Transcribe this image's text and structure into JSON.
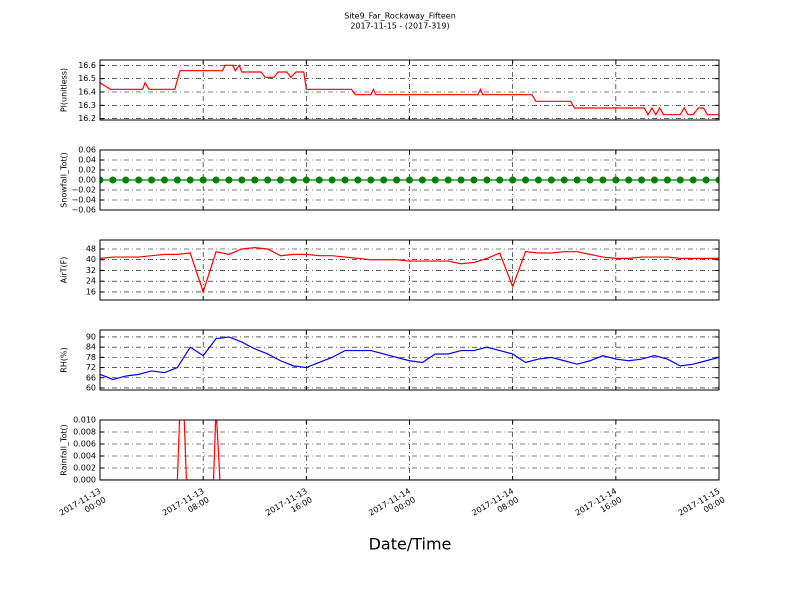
{
  "figure": {
    "title": "Site9_Far_Rockaway_Fifteen",
    "subtitle": "2017-11-15 - (2017-319)",
    "xlabel": "Date/Time",
    "xlim": [
      "2017-11-13 00:00",
      "2017-11-15 00:00"
    ],
    "xticks": [
      "2017-11-13 00:00",
      "2017-11-13 08:00",
      "2017-11-13 16:00",
      "2017-11-14 00:00",
      "2017-11-14 08:00",
      "2017-11-14 16:00",
      "2017-11-15 00:00"
    ]
  },
  "chart_data": [
    {
      "type": "line",
      "ylabel": "Pl(unitless)",
      "ylim": [
        16.19,
        16.64
      ],
      "yticks": [
        16.2,
        16.3,
        16.4,
        16.5,
        16.6
      ],
      "grid": true,
      "x": [
        "2017-11-13 00:00",
        "2017-11-13 00:48",
        "2017-11-13 03:18",
        "2017-11-13 03:30",
        "2017-11-13 03:48",
        "2017-11-13 05:48",
        "2017-11-13 06:12",
        "2017-11-13 09:30",
        "2017-11-13 09:42",
        "2017-11-13 10:18",
        "2017-11-13 10:30",
        "2017-11-13 10:48",
        "2017-11-13 11:00",
        "2017-11-13 12:30",
        "2017-11-13 12:48",
        "2017-11-13 13:30",
        "2017-11-13 13:48",
        "2017-11-13 14:30",
        "2017-11-13 14:48",
        "2017-11-13 15:12",
        "2017-11-13 15:48",
        "2017-11-13 16:00",
        "2017-11-13 19:30",
        "2017-11-13 19:48",
        "2017-11-13 21:00",
        "2017-11-13 21:12",
        "2017-11-13 21:24",
        "2017-11-14 05:18",
        "2017-11-14 05:30",
        "2017-11-14 05:42",
        "2017-11-14 09:30",
        "2017-11-14 09:48",
        "2017-11-14 12:30",
        "2017-11-14 12:48",
        "2017-11-14 18:12",
        "2017-11-14 18:30",
        "2017-11-14 18:48",
        "2017-11-14 19:06",
        "2017-11-14 19:24",
        "2017-11-14 19:42",
        "2017-11-14 21:00",
        "2017-11-14 21:18",
        "2017-11-14 21:36",
        "2017-11-14 22:00",
        "2017-11-14 22:24",
        "2017-11-14 22:48",
        "2017-11-14 23:06",
        "2017-11-15 00:00"
      ],
      "series": [
        {
          "color": "#ff0000",
          "values": [
            16.47,
            16.42,
            16.42,
            16.47,
            16.42,
            16.42,
            16.56,
            16.56,
            16.6,
            16.6,
            16.56,
            16.6,
            16.55,
            16.55,
            16.51,
            16.51,
            16.55,
            16.55,
            16.51,
            16.55,
            16.55,
            16.42,
            16.42,
            16.38,
            16.38,
            16.42,
            16.38,
            16.38,
            16.42,
            16.38,
            16.38,
            16.33,
            16.33,
            16.28,
            16.28,
            16.23,
            16.28,
            16.23,
            16.28,
            16.23,
            16.23,
            16.28,
            16.23,
            16.23,
            16.28,
            16.28,
            16.23,
            16.23
          ]
        }
      ]
    },
    {
      "type": "line",
      "ylabel": "Snowfall_Tot()",
      "ylim": [
        -0.06,
        0.06
      ],
      "yticks": [
        {
          "value": -0.06,
          "label": "−0.06"
        },
        {
          "value": -0.04,
          "label": "−0.04"
        },
        {
          "value": -0.02,
          "label": "−0.02"
        },
        {
          "value": 0,
          "label": "0.00"
        },
        0.02,
        0.04,
        0.06
      ],
      "grid": true,
      "x": [
        "2017-11-13 00:00",
        "2017-11-13 01:00",
        "2017-11-13 02:00",
        "2017-11-13 03:00",
        "2017-11-13 04:00",
        "2017-11-13 05:00",
        "2017-11-13 06:00",
        "2017-11-13 07:00",
        "2017-11-13 08:00",
        "2017-11-13 09:00",
        "2017-11-13 10:00",
        "2017-11-13 11:00",
        "2017-11-13 12:00",
        "2017-11-13 13:00",
        "2017-11-13 14:00",
        "2017-11-13 15:00",
        "2017-11-13 16:00",
        "2017-11-13 17:00",
        "2017-11-13 18:00",
        "2017-11-13 19:00",
        "2017-11-13 20:00",
        "2017-11-13 21:00",
        "2017-11-13 22:00",
        "2017-11-13 23:00",
        "2017-11-14 00:00",
        "2017-11-14 01:00",
        "2017-11-14 02:00",
        "2017-11-14 03:00",
        "2017-11-14 04:00",
        "2017-11-14 05:00",
        "2017-11-14 06:00",
        "2017-11-14 07:00",
        "2017-11-14 08:00",
        "2017-11-14 09:00",
        "2017-11-14 10:00",
        "2017-11-14 11:00",
        "2017-11-14 12:00",
        "2017-11-14 13:00",
        "2017-11-14 14:00",
        "2017-11-14 15:00",
        "2017-11-14 16:00",
        "2017-11-14 17:00",
        "2017-11-14 18:00",
        "2017-11-14 19:00",
        "2017-11-14 20:00",
        "2017-11-14 21:00",
        "2017-11-14 22:00",
        "2017-11-14 23:00",
        "2017-11-15 00:00"
      ],
      "series": [
        {
          "color": "#008000",
          "marker": "o",
          "values": [
            0,
            0,
            0,
            0,
            0,
            0,
            0,
            0,
            0,
            0,
            0,
            0,
            0,
            0,
            0,
            0,
            0,
            0,
            0,
            0,
            0,
            0,
            0,
            0,
            0,
            0,
            0,
            0,
            0,
            0,
            0,
            0,
            0,
            0,
            0,
            0,
            0,
            0,
            0,
            0,
            0,
            0,
            0,
            0,
            0,
            0,
            0,
            0,
            0
          ]
        }
      ]
    },
    {
      "type": "line",
      "ylabel": "AirT(F)",
      "ylim": [
        10,
        54.7
      ],
      "yticks": [
        16,
        24,
        32,
        40,
        48
      ],
      "grid": true,
      "x": [
        "2017-11-13 00:00",
        "2017-11-13 01:00",
        "2017-11-13 02:00",
        "2017-11-13 03:00",
        "2017-11-13 04:00",
        "2017-11-13 05:00",
        "2017-11-13 06:00",
        "2017-11-13 07:00",
        "2017-11-13 08:00",
        "2017-11-13 09:00",
        "2017-11-13 10:00",
        "2017-11-13 11:00",
        "2017-11-13 12:00",
        "2017-11-13 13:00",
        "2017-11-13 14:00",
        "2017-11-13 15:00",
        "2017-11-13 16:00",
        "2017-11-13 17:00",
        "2017-11-13 18:00",
        "2017-11-13 19:00",
        "2017-11-13 20:00",
        "2017-11-13 21:00",
        "2017-11-13 22:00",
        "2017-11-13 23:00",
        "2017-11-14 00:00",
        "2017-11-14 01:00",
        "2017-11-14 02:00",
        "2017-11-14 03:00",
        "2017-11-14 04:00",
        "2017-11-14 05:00",
        "2017-11-14 06:00",
        "2017-11-14 07:00",
        "2017-11-14 08:00",
        "2017-11-14 09:00",
        "2017-11-14 10:00",
        "2017-11-14 11:00",
        "2017-11-14 12:00",
        "2017-11-14 13:00",
        "2017-11-14 14:00",
        "2017-11-14 15:00",
        "2017-11-14 16:00",
        "2017-11-14 17:00",
        "2017-11-14 18:00",
        "2017-11-14 19:00",
        "2017-11-14 20:00",
        "2017-11-14 21:00",
        "2017-11-14 22:00",
        "2017-11-14 23:00",
        "2017-11-15 00:00"
      ],
      "series": [
        {
          "color": "#ff0000",
          "values": [
            41,
            42,
            42,
            42,
            43,
            44,
            44,
            45,
            16,
            46,
            44,
            48,
            49,
            48,
            43,
            44,
            44,
            43,
            43,
            42,
            41,
            40,
            40,
            40,
            39,
            39,
            39,
            39,
            37,
            38,
            41,
            45,
            20,
            46,
            45,
            45,
            46,
            46,
            44,
            42,
            41,
            41,
            42,
            42,
            42,
            41,
            41,
            41,
            41
          ]
        }
      ]
    },
    {
      "type": "line",
      "ylabel": "RH(%)",
      "ylim": [
        58.8,
        94.1
      ],
      "yticks": [
        60,
        66,
        72,
        78,
        84,
        90
      ],
      "grid": true,
      "x": [
        "2017-11-13 00:00",
        "2017-11-13 01:00",
        "2017-11-13 02:00",
        "2017-11-13 03:00",
        "2017-11-13 04:00",
        "2017-11-13 05:00",
        "2017-11-13 06:00",
        "2017-11-13 07:00",
        "2017-11-13 08:00",
        "2017-11-13 09:00",
        "2017-11-13 10:00",
        "2017-11-13 11:00",
        "2017-11-13 12:00",
        "2017-11-13 13:00",
        "2017-11-13 14:00",
        "2017-11-13 15:00",
        "2017-11-13 16:00",
        "2017-11-13 17:00",
        "2017-11-13 18:00",
        "2017-11-13 19:00",
        "2017-11-13 20:00",
        "2017-11-13 21:00",
        "2017-11-13 22:00",
        "2017-11-13 23:00",
        "2017-11-14 00:00",
        "2017-11-14 01:00",
        "2017-11-14 02:00",
        "2017-11-14 03:00",
        "2017-11-14 04:00",
        "2017-11-14 05:00",
        "2017-11-14 06:00",
        "2017-11-14 07:00",
        "2017-11-14 08:00",
        "2017-11-14 09:00",
        "2017-11-14 10:00",
        "2017-11-14 11:00",
        "2017-11-14 12:00",
        "2017-11-14 13:00",
        "2017-11-14 14:00",
        "2017-11-14 15:00",
        "2017-11-14 16:00",
        "2017-11-14 17:00",
        "2017-11-14 18:00",
        "2017-11-14 19:00",
        "2017-11-14 20:00",
        "2017-11-14 21:00",
        "2017-11-14 22:00",
        "2017-11-14 23:00",
        "2017-11-15 00:00"
      ],
      "series": [
        {
          "color": "#0000ff",
          "values": [
            68,
            65,
            67,
            68,
            70,
            69,
            72,
            84,
            79,
            89,
            90,
            87,
            83,
            80,
            76,
            73,
            72,
            75,
            78,
            82,
            82,
            82,
            80,
            78,
            76,
            75,
            80,
            80,
            82,
            82,
            84,
            82,
            80,
            75,
            77,
            78,
            76,
            74,
            76,
            79,
            77,
            76,
            77,
            79,
            77,
            73,
            74,
            76,
            78
          ]
        }
      ]
    },
    {
      "type": "line",
      "ylabel": "Rainfall_Tot()",
      "ylim": [
        0,
        0.01
      ],
      "yticks": [
        {
          "value": 0,
          "label": "0.000"
        },
        {
          "value": 0.002,
          "label": "0.002"
        },
        {
          "value": 0.004,
          "label": "0.004"
        },
        {
          "value": 0.006,
          "label": "0.006"
        },
        {
          "value": 0.008,
          "label": "0.008"
        },
        {
          "value": 0.01,
          "label": "0.010"
        }
      ],
      "grid": true,
      "x": [
        "2017-11-13 00:00",
        "2017-11-13 06:00",
        "2017-11-13 06:12",
        "2017-11-13 06:30",
        "2017-11-13 06:42",
        "2017-11-13 08:48",
        "2017-11-13 09:00",
        "2017-11-13 09:18",
        "2017-11-15 00:00"
      ],
      "series": [
        {
          "color": "#ff0000",
          "values": [
            0,
            0,
            0.012,
            0.012,
            0,
            0,
            0.012,
            0,
            0
          ]
        }
      ]
    }
  ]
}
